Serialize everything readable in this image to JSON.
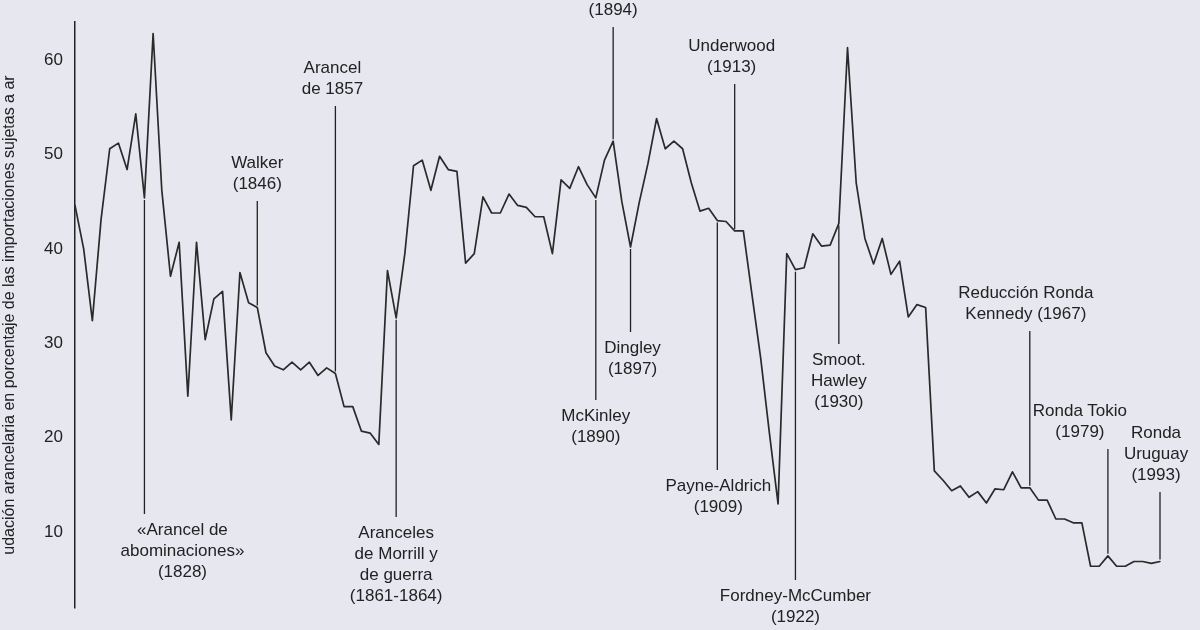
{
  "chart_data": {
    "type": "line",
    "ylabel": "udación arancelaria en porcentaje de las importaciones sujetas a ar",
    "tick_labels": "y",
    "ylim": [
      2,
      64
    ],
    "yticks": [
      10,
      20,
      30,
      40,
      50,
      60
    ],
    "marker": "none",
    "line_style": "solid",
    "categories": [
      null,
      null,
      null,
      null,
      null,
      null,
      null,
      null,
      null,
      null,
      null,
      null,
      null,
      null,
      null,
      null,
      null,
      null,
      null,
      null,
      null,
      null,
      null,
      null,
      null,
      null,
      null,
      null,
      null,
      null,
      null,
      null,
      null,
      null,
      null,
      null,
      null,
      null,
      null,
      null,
      null,
      null,
      null,
      null,
      null,
      null,
      null,
      null,
      null,
      null,
      null,
      null,
      null,
      null,
      null,
      null,
      null,
      null,
      null,
      null,
      null,
      null,
      null,
      null,
      null,
      null,
      null,
      null,
      null,
      null,
      null,
      null,
      null,
      null,
      null,
      null,
      null,
      null,
      null,
      null,
      null,
      null,
      null,
      null,
      null,
      null,
      null,
      null,
      null,
      null,
      null,
      null,
      null,
      null,
      null,
      null,
      null,
      null,
      null,
      null,
      null,
      null,
      null,
      null,
      null,
      null,
      null,
      null,
      null,
      null,
      null,
      null,
      null,
      null,
      null,
      null,
      null,
      null,
      null,
      null,
      null,
      null,
      null,
      null,
      null,
      null
    ],
    "series": [
      {
        "color": "#2a2a2a",
        "values": [
          44.6,
          40.0,
          32.4,
          43.1,
          50.6,
          51.2,
          48.4,
          54.3,
          45.4,
          62.8,
          46.2,
          37.1,
          40.7,
          24.4,
          40.7,
          30.4,
          34.7,
          35.5,
          21.9,
          37.5,
          34.3,
          33.8,
          29.0,
          27.6,
          27.2,
          28.0,
          27.2,
          28.0,
          26.6,
          27.4,
          26.8,
          23.3,
          23.3,
          20.7,
          20.5,
          19.3,
          37.7,
          32.7,
          39.5,
          48.8,
          49.4,
          46.2,
          49.8,
          48.4,
          48.2,
          38.5,
          39.5,
          45.5,
          43.8,
          43.8,
          45.8,
          44.6,
          44.4,
          43.4,
          43.4,
          39.5,
          47.3,
          46.4,
          48.7,
          46.8,
          45.4,
          49.4,
          51.4,
          45.0,
          40.2,
          44.9,
          49.0,
          53.8,
          50.6,
          51.4,
          50.6,
          47.0,
          44.0,
          44.3,
          43.0,
          42.9,
          41.9,
          41.9,
          35.1,
          28.4,
          20.5,
          13.0,
          39.5,
          37.8,
          38.0,
          41.6,
          40.3,
          40.4,
          42.7,
          61.3,
          47.0,
          41.1,
          38.4,
          41.1,
          37.3,
          38.7,
          32.8,
          34.1,
          33.8,
          16.5,
          15.5,
          14.4,
          14.9,
          13.7,
          14.3,
          13.1,
          14.6,
          14.5,
          16.4,
          14.7,
          14.7,
          13.4,
          13.4,
          11.4,
          11.4,
          11.0,
          11.0,
          6.4,
          6.4,
          7.5,
          6.4,
          6.4,
          6.9,
          6.9,
          6.7,
          6.9
        ]
      }
    ],
    "annotations": [
      "«Arancel de abominaciones» (1828)",
      "Walker (1846)",
      "Arancel de 1857",
      "Aranceles de Morrill y de guerra (1861-1864)",
      "McKinley (1890)",
      "(1894)",
      "Dingley (1897)",
      "Payne-Aldrich (1909)",
      "Underwood (1913)",
      "Fordney-McCumber (1922)",
      "Smoot. Hawley (1930)",
      "Reducción Ronda Kennedy (1967)",
      "Ronda Tokio (1979)",
      "Ronda Uruguay (1993)"
    ]
  }
}
